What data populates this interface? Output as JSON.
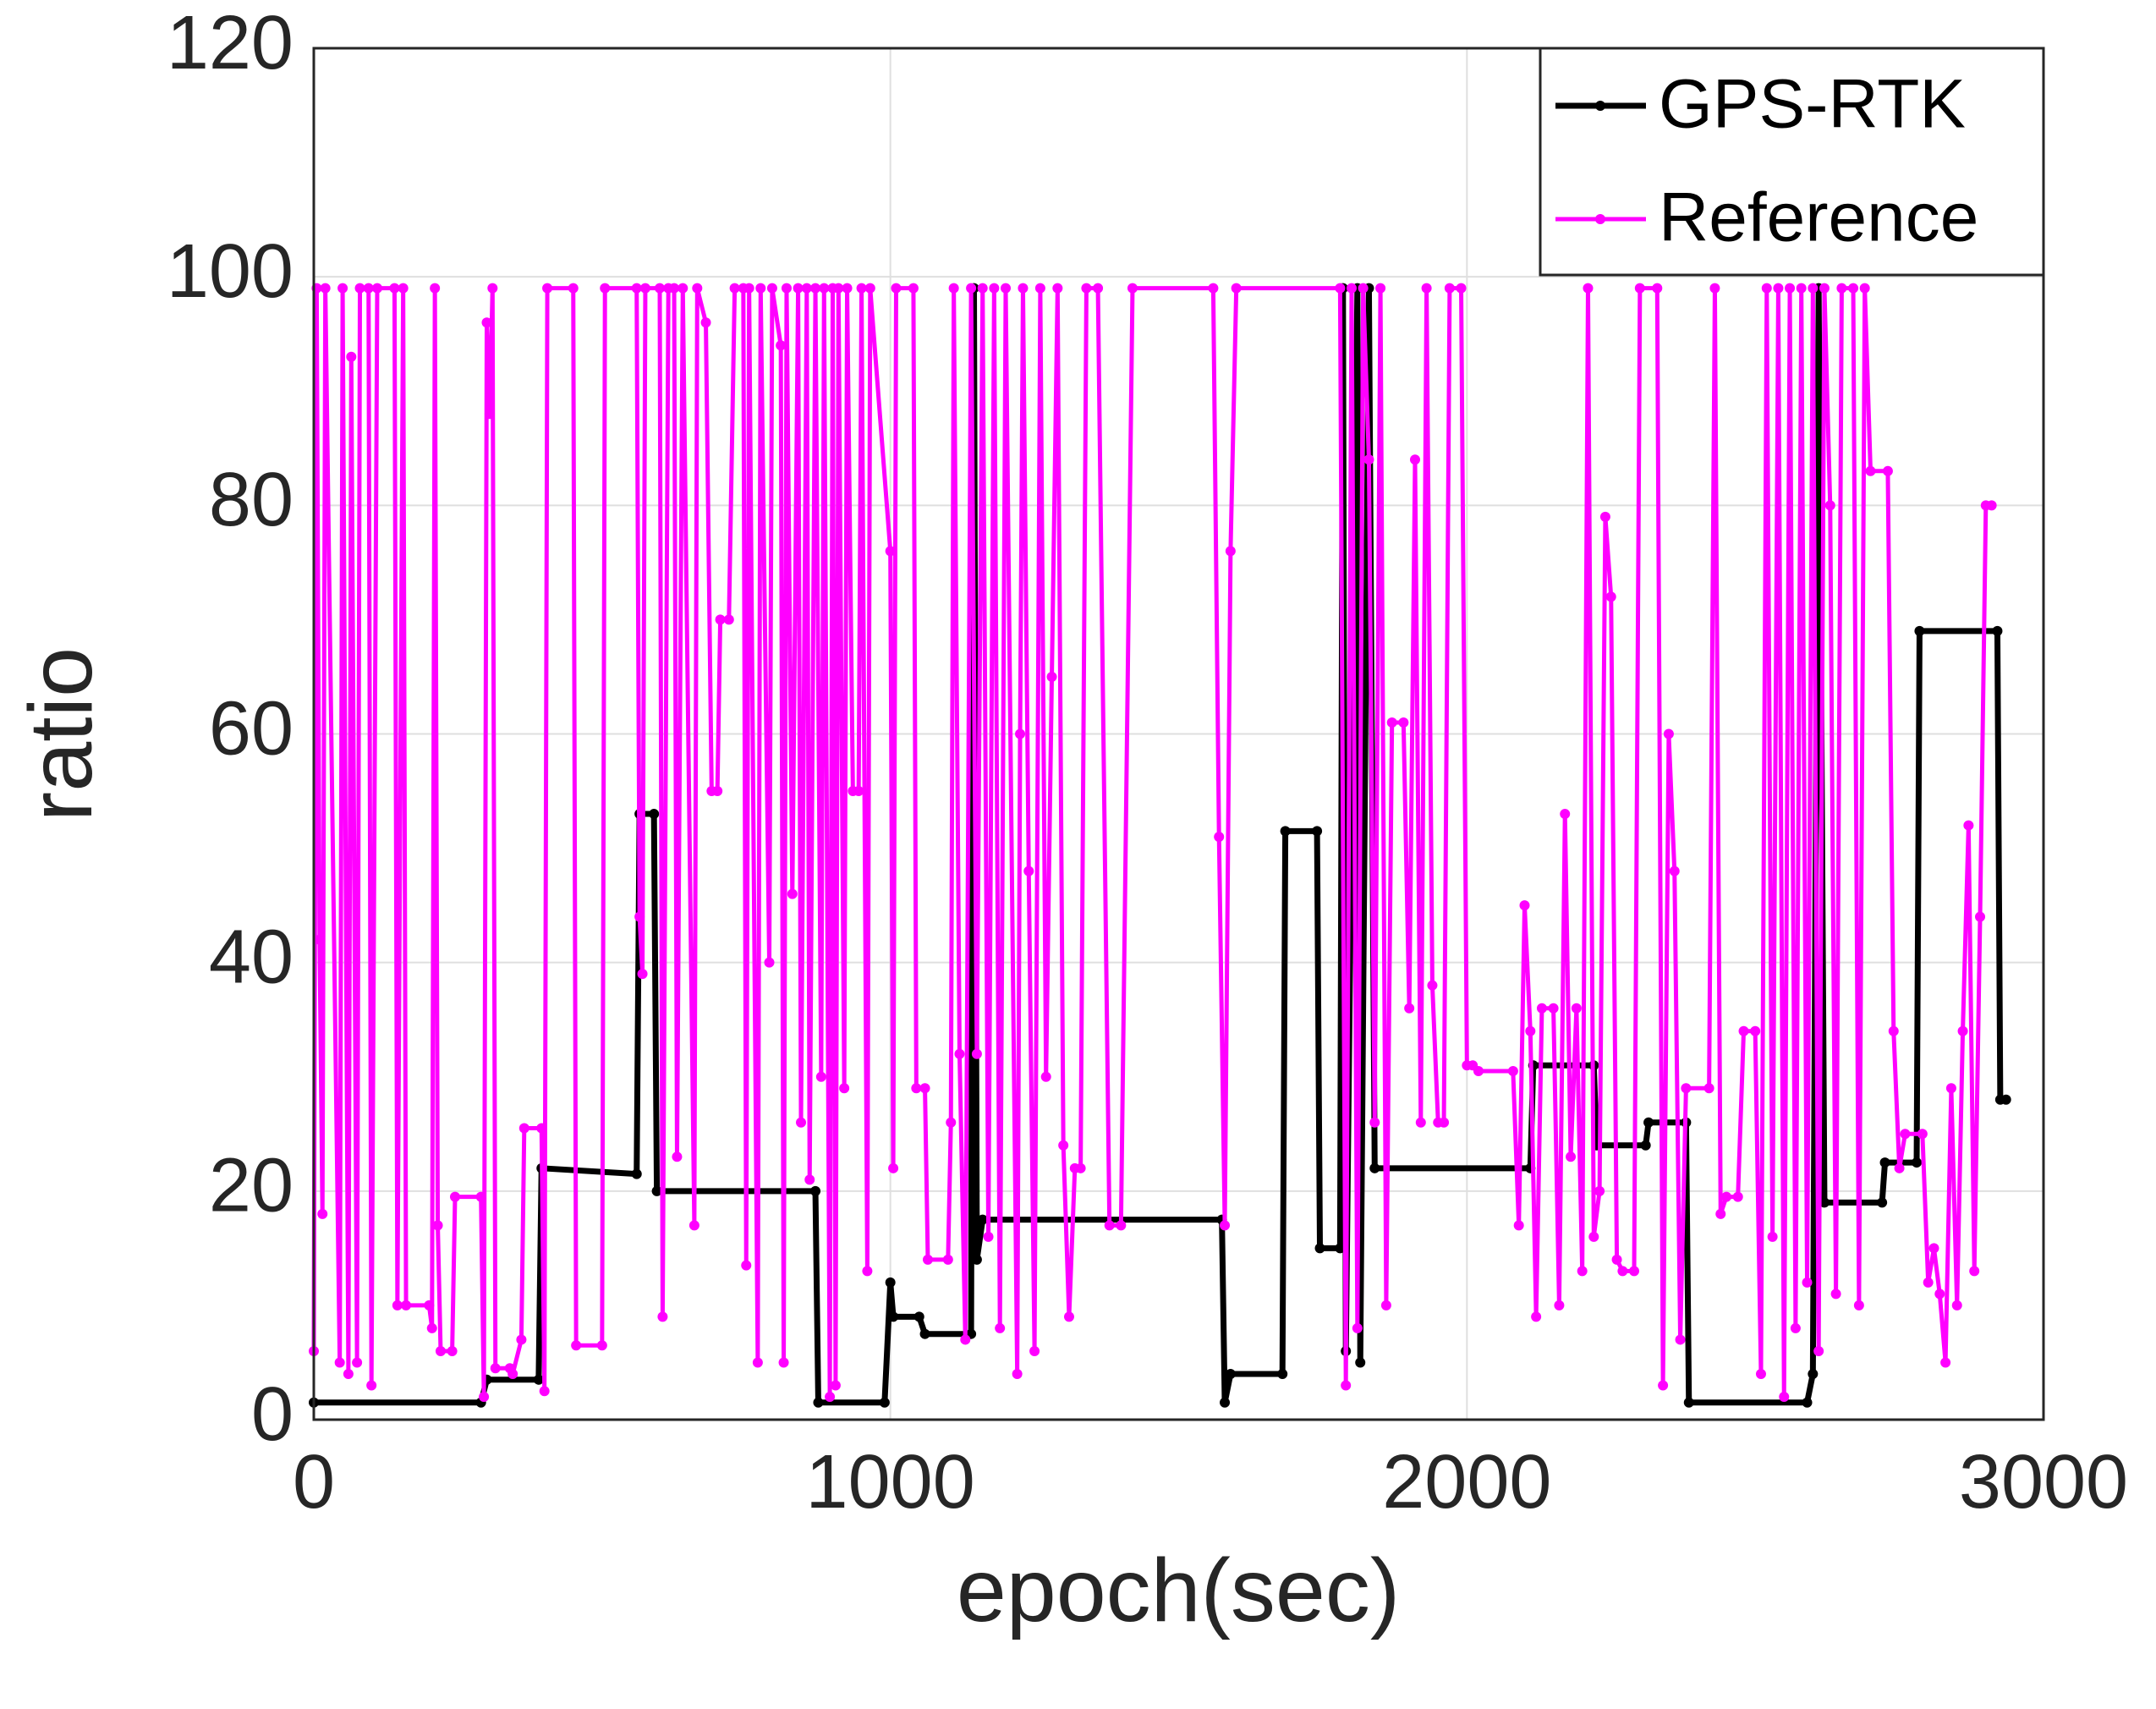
{
  "chart_data": {
    "type": "line",
    "xlabel": "epoch(sec)",
    "ylabel": "ratio",
    "xlim": [
      0,
      3000
    ],
    "xticks": [
      0,
      1000,
      2000,
      3000
    ],
    "ylim": [
      0,
      120
    ],
    "yticks": [
      0,
      20,
      40,
      60,
      80,
      100,
      120
    ],
    "grid": true,
    "legend": "northeast",
    "series": [
      {
        "name": "GPS-RTK",
        "color": "#000000",
        "x": [
          0,
          290,
          300,
          390,
          395,
          560,
          565,
          590,
          595,
          870,
          875,
          990,
          1000,
          1005,
          1050,
          1060,
          1140,
          1145,
          1150,
          1160,
          1575,
          1580,
          1590,
          1680,
          1685,
          1740,
          1745,
          1780,
          1785,
          1790,
          1810,
          1815,
          1830,
          1840,
          2110,
          2115,
          2220,
          2225,
          2310,
          2315,
          2380,
          2385,
          2590,
          2600,
          2610,
          2620,
          2720,
          2725,
          2780,
          2785,
          2920,
          2925,
          2935
        ],
        "values": [
          1.5,
          1.5,
          3.5,
          3.5,
          22,
          21.5,
          53,
          53,
          20,
          20,
          1.5,
          1.5,
          12,
          9,
          9,
          7.5,
          7.5,
          99,
          14,
          17.5,
          17.5,
          1.5,
          4,
          4,
          51.5,
          51.5,
          15,
          15,
          99,
          6,
          99,
          5,
          99,
          22,
          22,
          31,
          31,
          24,
          24,
          26,
          26,
          1.5,
          1.5,
          4,
          99,
          19,
          19,
          22.5,
          22.5,
          69,
          69,
          28,
          28
        ]
      },
      {
        "name": "Reference",
        "color": "#ff00ff",
        "x": [
          0,
          5,
          10,
          15,
          20,
          45,
          50,
          60,
          65,
          75,
          80,
          95,
          100,
          110,
          140,
          145,
          155,
          160,
          200,
          205,
          210,
          215,
          220,
          240,
          245,
          290,
          295,
          300,
          305,
          310,
          315,
          340,
          345,
          360,
          365,
          395,
          400,
          405,
          450,
          455,
          500,
          505,
          560,
          565,
          570,
          575,
          600,
          605,
          615,
          625,
          630,
          640,
          660,
          665,
          680,
          690,
          700,
          705,
          720,
          730,
          745,
          750,
          755,
          770,
          775,
          790,
          795,
          810,
          815,
          820,
          830,
          840,
          845,
          855,
          860,
          870,
          880,
          885,
          895,
          900,
          905,
          910,
          920,
          925,
          935,
          945,
          950,
          960,
          965,
          1000,
          1005,
          1010,
          1040,
          1045,
          1060,
          1065,
          1100,
          1105,
          1110,
          1120,
          1130,
          1140,
          1150,
          1160,
          1170,
          1180,
          1190,
          1200,
          1220,
          1225,
          1230,
          1240,
          1250,
          1260,
          1270,
          1280,
          1290,
          1300,
          1310,
          1320,
          1330,
          1340,
          1360,
          1380,
          1400,
          1420,
          1560,
          1570,
          1580,
          1590,
          1600,
          1780,
          1790,
          1800,
          1810,
          1820,
          1830,
          1840,
          1850,
          1860,
          1870,
          1890,
          1900,
          1910,
          1920,
          1930,
          1940,
          1950,
          1960,
          1970,
          1990,
          2000,
          2010,
          2020,
          2080,
          2090,
          2100,
          2110,
          2120,
          2130,
          2150,
          2160,
          2170,
          2180,
          2190,
          2200,
          2210,
          2220,
          2230,
          2240,
          2250,
          2260,
          2270,
          2290,
          2300,
          2330,
          2340,
          2350,
          2360,
          2370,
          2380,
          2420,
          2430,
          2440,
          2450,
          2470,
          2480,
          2500,
          2510,
          2520,
          2530,
          2540,
          2550,
          2560,
          2570,
          2580,
          2590,
          2600,
          2610,
          2620,
          2630,
          2640,
          2650,
          2670,
          2680,
          2690,
          2700,
          2730,
          2740,
          2750,
          2760,
          2790,
          2800,
          2810,
          2820,
          2830,
          2840,
          2850,
          2860,
          2870,
          2880,
          2890,
          2900,
          2910
        ],
        "values": [
          6,
          99,
          42,
          18,
          99,
          5,
          99,
          4,
          93,
          5,
          99,
          99,
          3,
          99,
          99,
          10,
          99,
          10,
          10,
          8,
          99,
          17,
          6,
          6,
          19.5,
          19.5,
          2,
          96,
          88,
          99,
          4.5,
          4.5,
          4,
          7,
          25.5,
          25.5,
          2.5,
          99,
          99,
          6.5,
          6.5,
          99,
          99,
          44,
          39,
          99,
          99,
          9,
          99,
          99,
          23,
          99,
          17,
          99,
          96,
          55,
          55,
          70,
          70,
          99,
          99,
          13.5,
          99,
          5,
          99,
          40,
          99,
          94,
          5,
          99,
          46,
          99,
          26,
          99,
          21,
          99,
          30,
          99,
          2,
          99,
          3,
          99,
          29,
          99,
          55,
          55,
          99,
          13,
          99,
          76,
          22,
          99,
          99,
          29,
          29,
          14,
          14,
          26,
          99,
          32,
          7,
          99,
          32,
          99,
          16,
          99,
          8,
          99,
          4,
          60,
          99,
          48,
          6,
          99,
          30,
          65,
          99,
          24,
          9,
          22,
          22,
          99,
          99,
          17,
          17,
          99,
          99,
          51,
          17,
          76,
          99,
          99,
          3,
          99,
          8,
          99,
          84,
          26,
          99,
          10,
          61,
          61,
          36,
          84,
          26,
          99,
          38,
          26,
          26,
          99,
          99,
          31,
          31,
          30.5,
          30.5,
          17,
          45,
          34,
          9,
          36,
          36,
          10,
          53,
          23,
          36,
          13,
          99,
          16,
          20,
          79,
          72,
          14,
          13,
          13,
          99,
          99,
          3,
          60,
          48,
          7,
          29,
          29,
          99,
          18,
          19.5,
          19.5,
          34,
          34,
          4,
          99,
          16,
          99,
          2,
          99,
          8,
          99,
          12,
          99,
          6,
          99,
          80,
          11,
          99,
          99,
          10,
          99,
          83,
          83,
          34,
          22,
          25,
          25,
          12,
          15,
          11,
          5,
          29,
          10,
          34,
          52,
          13,
          44,
          80,
          80
        ]
      }
    ]
  }
}
